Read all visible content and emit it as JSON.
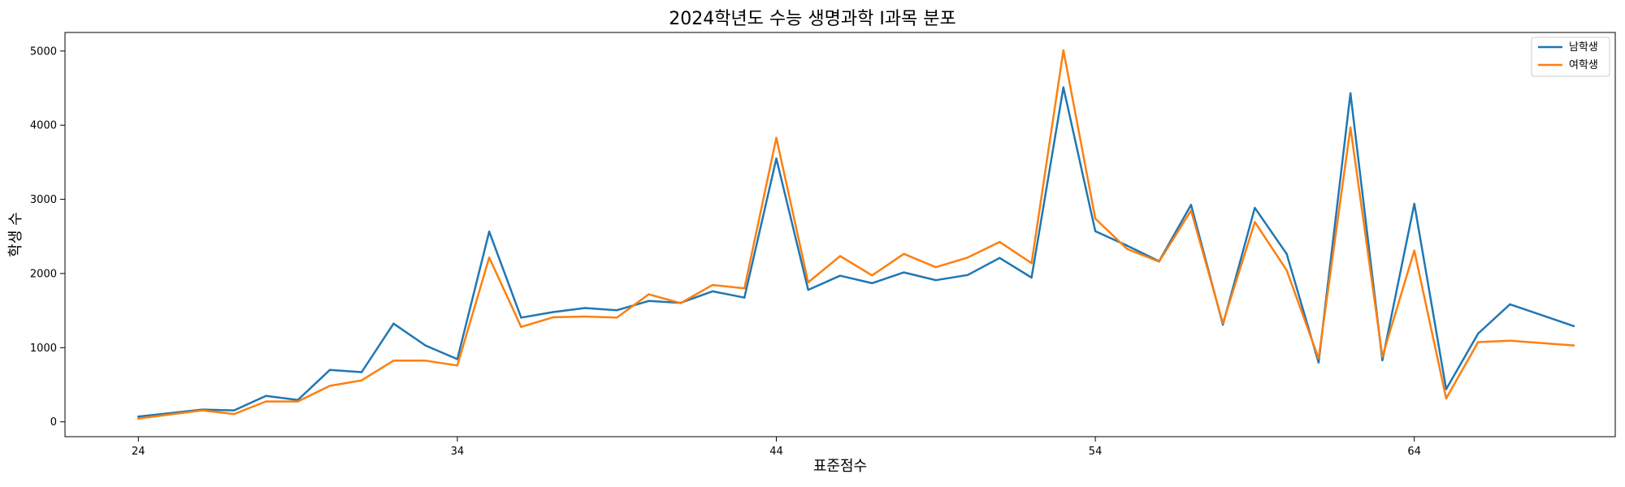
{
  "chart_data": {
    "type": "line",
    "title": "2024학년도 수능 생명과학 I과목 분포",
    "xlabel": "표준점수",
    "ylabel": "학생 수",
    "xlim": [
      21.7,
      70.3
    ],
    "ylim": [
      -200,
      5250
    ],
    "xticks": [
      24,
      34,
      44,
      54,
      64
    ],
    "yticks": [
      0,
      1000,
      2000,
      3000,
      4000,
      5000
    ],
    "grid": false,
    "legend_position": "top-right",
    "x": [
      24,
      26,
      27,
      28,
      29,
      30,
      31,
      32,
      33,
      34,
      35,
      36,
      37,
      38,
      39,
      40,
      41,
      42,
      43,
      44,
      45,
      46,
      47,
      48,
      49,
      50,
      51,
      52,
      53,
      54,
      55,
      56,
      57,
      58,
      59,
      60,
      61,
      62,
      63,
      64,
      65,
      66,
      67,
      69
    ],
    "series": [
      {
        "name": "남학생",
        "color": "#1f77b4",
        "values": [
          70,
          165,
          155,
          350,
          295,
          700,
          670,
          1325,
          1030,
          845,
          2565,
          1405,
          1480,
          1535,
          1505,
          1630,
          1605,
          1760,
          1675,
          3550,
          1780,
          1970,
          1870,
          2015,
          1910,
          1980,
          2210,
          1945,
          4510,
          2570,
          2375,
          2165,
          2925,
          1310,
          2885,
          2265,
          800,
          4430,
          830,
          2940,
          440,
          1190,
          1585,
          1290
        ]
      },
      {
        "name": "여학생",
        "color": "#ff7f0e",
        "values": [
          45,
          155,
          105,
          275,
          275,
          485,
          560,
          825,
          825,
          760,
          2215,
          1280,
          1410,
          1420,
          1405,
          1720,
          1600,
          1845,
          1800,
          3830,
          1880,
          2235,
          1975,
          2265,
          2085,
          2215,
          2425,
          2140,
          5010,
          2740,
          2330,
          2160,
          2850,
          1330,
          2695,
          2045,
          855,
          3970,
          880,
          2310,
          315,
          1075,
          1095,
          1030
        ]
      }
    ]
  }
}
